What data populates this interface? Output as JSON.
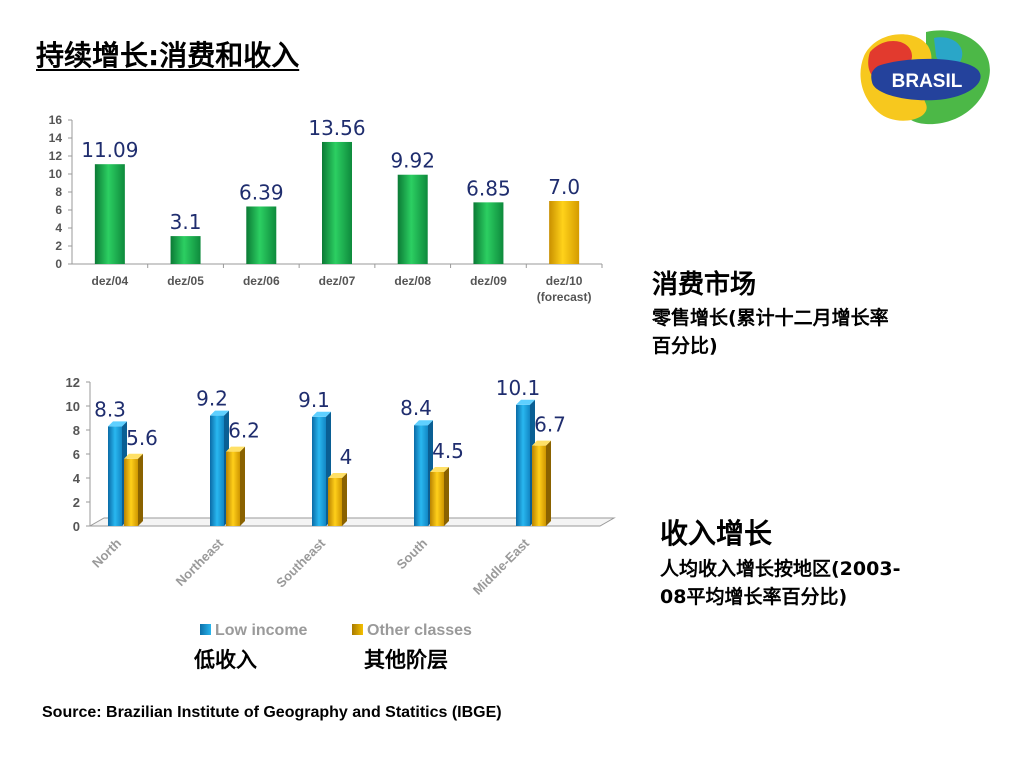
{
  "title": "持续增长:消费和收入",
  "logo": {
    "text": "BRASIL"
  },
  "consumer": {
    "heading": "消费市场",
    "subtitle_line1": "零售增长(累计十二月增长率",
    "subtitle_line2": "百分比)"
  },
  "income": {
    "heading": "收入增长",
    "subtitle_line1": "人均收入增长按地区(2003-",
    "subtitle_line2": "08平均增长率百分比)"
  },
  "legend": {
    "low_label": "Low income",
    "other_label": "Other classes",
    "low_cn": "低收入",
    "other_cn": "其他阶层"
  },
  "source": "Source: Brazilian Institute of Geography and Statitics (IBGE)",
  "colors": {
    "green": "#1aa34a",
    "gold": "#e8b400",
    "blue": "#1ea7e0",
    "orange": "#f0b400",
    "value_label": "#1f2d6e"
  },
  "chart_data": [
    {
      "type": "bar",
      "categories": [
        "dez/04",
        "dez/05",
        "dez/06",
        "dez/07",
        "dez/08",
        "dez/09",
        "dez/10"
      ],
      "category_sublabels": [
        "",
        "",
        "",
        "",
        "",
        "",
        "(forecast)"
      ],
      "values": [
        11.09,
        3.1,
        6.39,
        13.56,
        9.92,
        6.85,
        7.0
      ],
      "value_labels": [
        "11.09",
        "3.1",
        "6.39",
        "13.56",
        "9.92",
        "6.85",
        "7.0"
      ],
      "forecast_index": 6,
      "ylim": [
        0,
        16
      ],
      "yticks": [
        0,
        2,
        4,
        6,
        8,
        10,
        12,
        14,
        16
      ],
      "grid": false
    },
    {
      "type": "bar",
      "categories": [
        "North",
        "Northeast",
        "Southeast",
        "South",
        "Middle-East"
      ],
      "series": [
        {
          "name": "Low income",
          "values": [
            8.3,
            9.2,
            9.1,
            8.4,
            10.1
          ],
          "value_labels": [
            "8.3",
            "9.2",
            "9.1",
            "8.4",
            "10.1"
          ]
        },
        {
          "name": "Other classes",
          "values": [
            5.6,
            6.2,
            4,
            4.5,
            6.7
          ],
          "value_labels": [
            "5.6",
            "6.2",
            "4",
            "4.5",
            "6.7"
          ]
        }
      ],
      "ylim": [
        0,
        12
      ],
      "yticks": [
        0,
        2,
        4,
        6,
        8,
        10,
        12
      ],
      "legend_position": "bottom",
      "grid": false
    }
  ]
}
